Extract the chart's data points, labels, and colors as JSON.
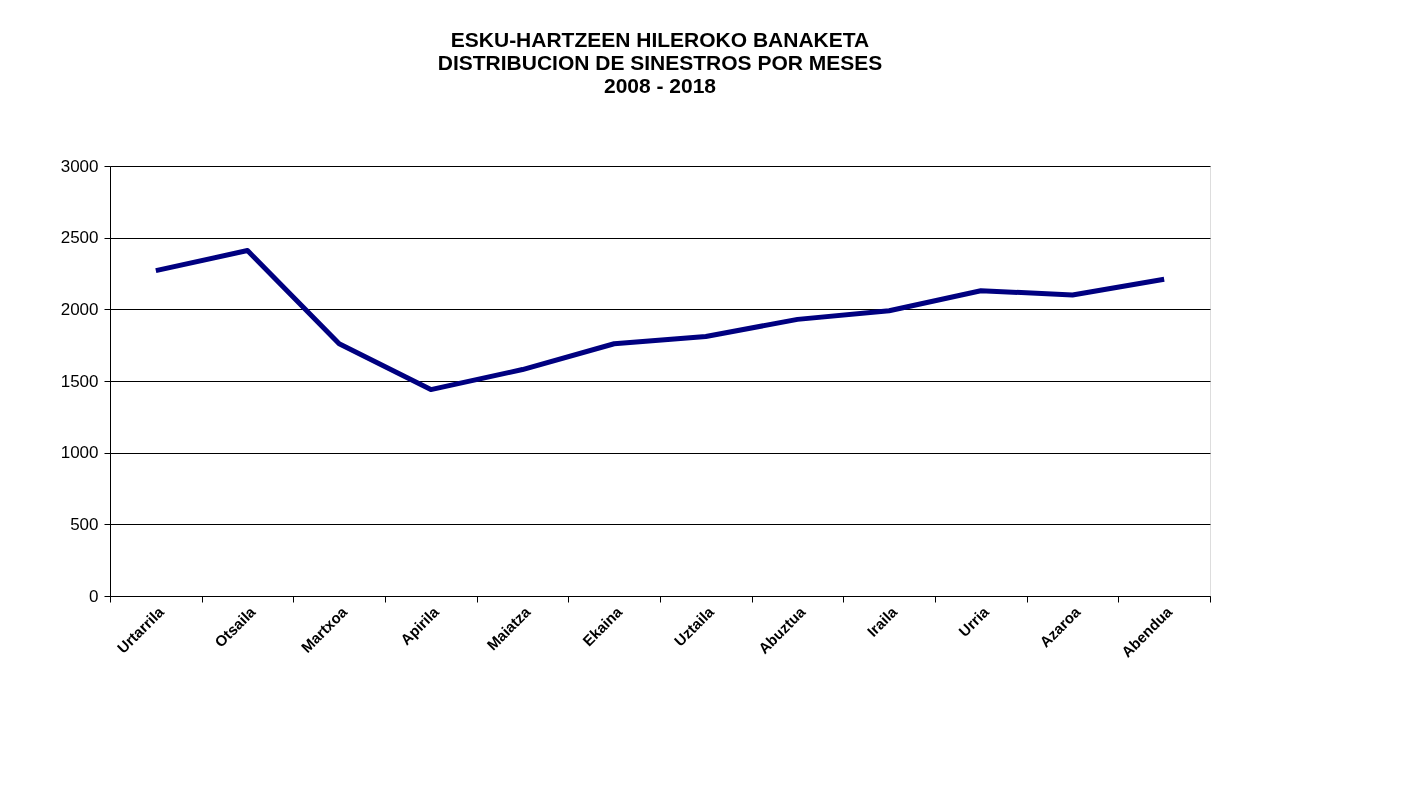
{
  "chart_data": {
    "type": "line",
    "title": "ESKU-HARTZEEN HILEROKO BANAKETA\nDISTRIBUCION DE SINESTROS POR MESES\n2008 - 2018",
    "categories": [
      "Urtarrila",
      "Otsaila",
      "Martxoa",
      "Apirila",
      "Maiatza",
      "Ekaina",
      "Uztaila",
      "Abuztua",
      "Iraila",
      "Urria",
      "Azaroa",
      "Abendua"
    ],
    "series": [
      {
        "color": "#000080",
        "values": [
          2270,
          2410,
          1760,
          1440,
          1580,
          1760,
          1810,
          1930,
          1990,
          2130,
          2100,
          2210
        ]
      }
    ],
    "ylim": [
      0,
      3000
    ],
    "yticks": [
      0,
      500,
      1000,
      1500,
      2000,
      2500,
      3000
    ],
    "grid": "y",
    "legend": false,
    "marker": "none",
    "line_style": "solid"
  }
}
